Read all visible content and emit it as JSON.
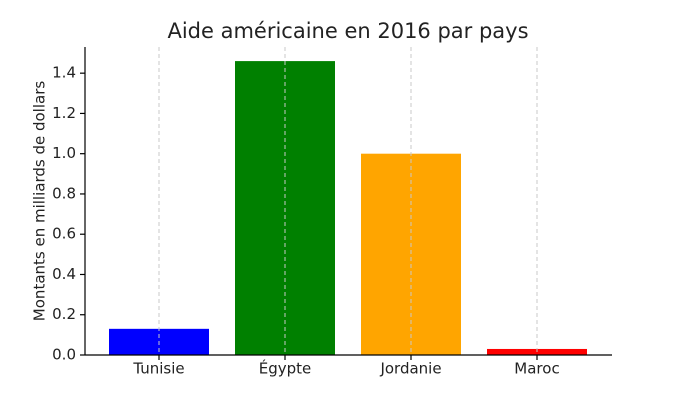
{
  "chart_data": {
    "type": "bar",
    "title": "Aide américaine en 2016 par pays",
    "y_label": "Montants en milliards de dollars",
    "categories": [
      "Tunisie",
      "Égypte",
      "Jordanie",
      "Maroc"
    ],
    "values": [
      0.13,
      1.46,
      1.0,
      0.03
    ],
    "colors": [
      "#0000ff",
      "#008000",
      "#ffa500",
      "#ff0000"
    ],
    "ylim": [
      0,
      1.53
    ],
    "yticks": [
      {
        "value": 0,
        "label": "0.0"
      },
      0.2,
      0.4,
      0.6,
      0.8,
      {
        "value": 1,
        "label": "1.0"
      },
      1.2,
      1.4
    ],
    "grid": "x"
  }
}
